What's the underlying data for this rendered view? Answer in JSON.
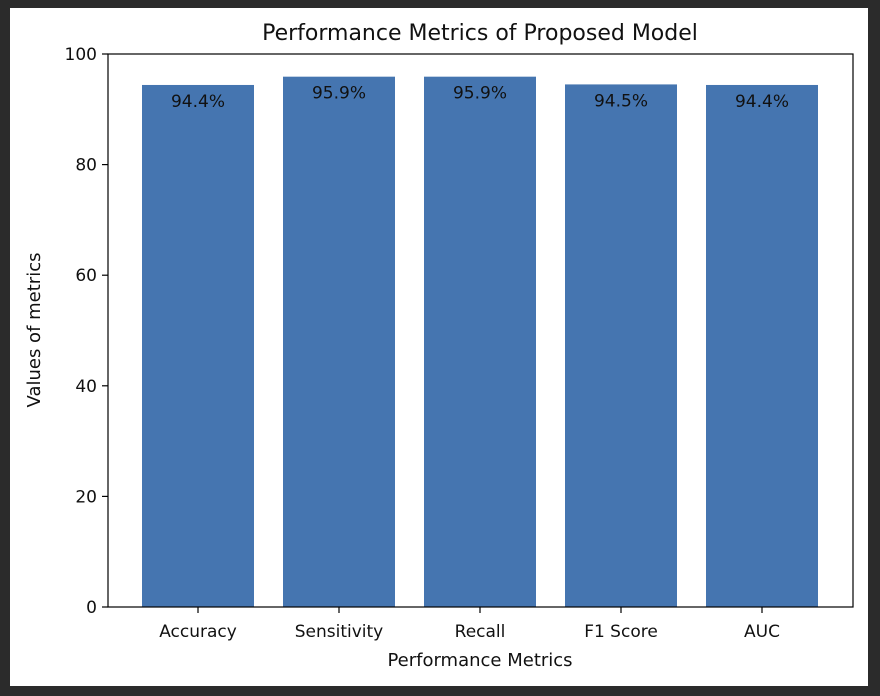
{
  "chart_data": {
    "type": "bar",
    "title": "Performance Metrics of Proposed Model",
    "xlabel": "Performance Metrics",
    "ylabel": "Values of metrics",
    "categories": [
      "Accuracy",
      "Sensitivity",
      "Recall",
      "F1 Score",
      "AUC"
    ],
    "values": [
      94.4,
      95.9,
      95.9,
      94.5,
      94.4
    ],
    "value_labels": [
      "94.4%",
      "95.9%",
      "95.9%",
      "94.5%",
      "94.4%"
    ],
    "ylim": [
      0,
      100
    ],
    "yticks": [
      0,
      20,
      40,
      60,
      80,
      100
    ],
    "grid": false,
    "legend": "none",
    "bar_color": "#4575b0"
  }
}
